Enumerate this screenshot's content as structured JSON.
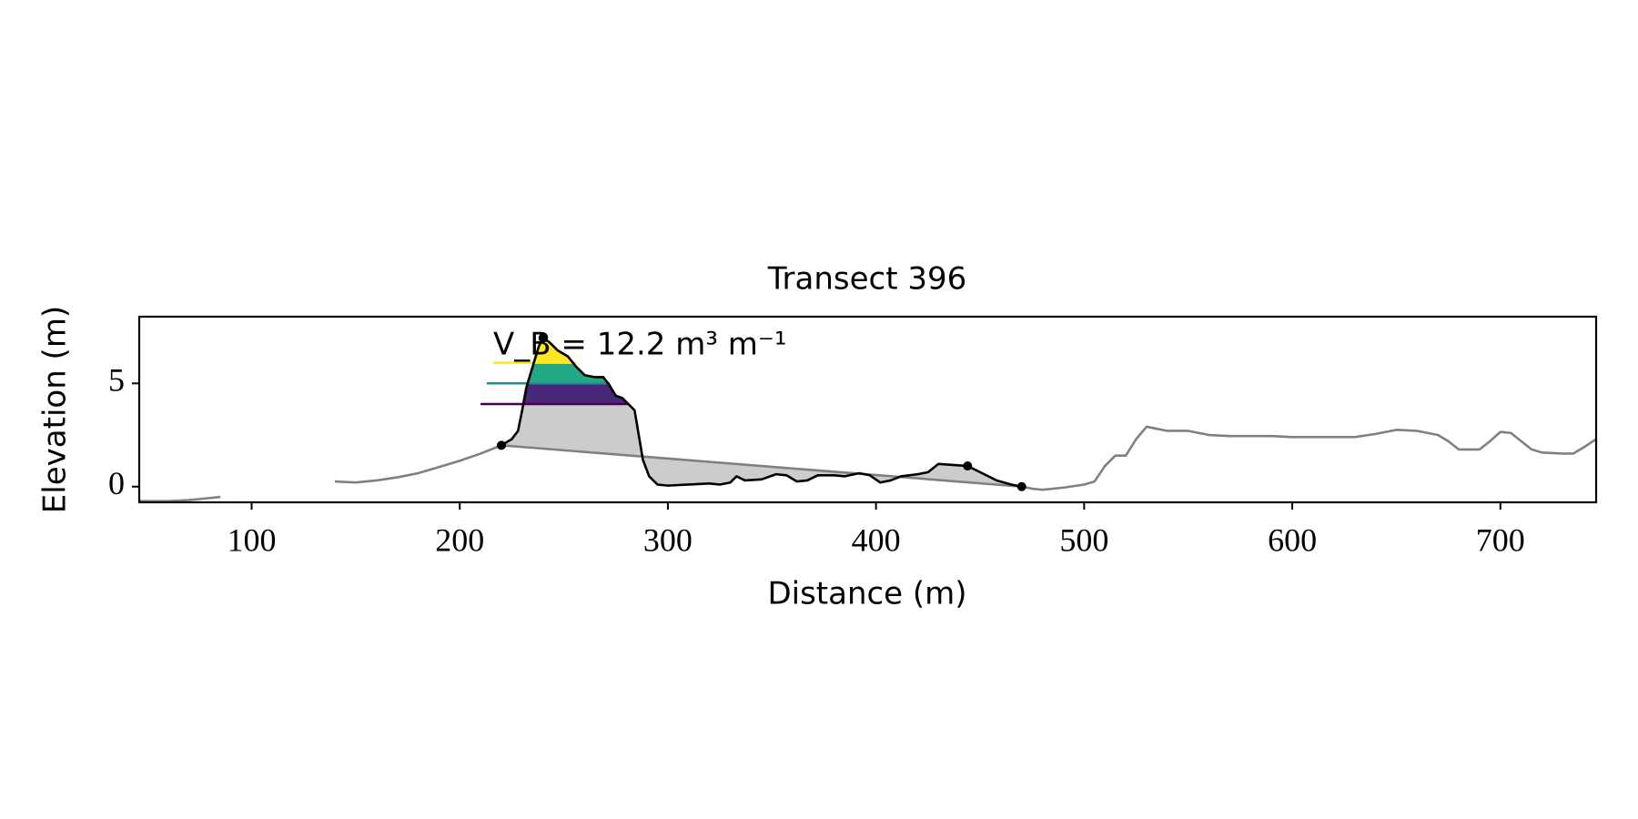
{
  "chart_data": {
    "type": "line",
    "title": "Transect 396",
    "xlabel": "Distance (m)",
    "ylabel": "Elevation (m)",
    "annotation": "V_B = 12.2 m³ m⁻¹",
    "xlim": [
      46,
      746
    ],
    "ylim": [
      -0.76,
      8.23
    ],
    "xticks": [
      100,
      200,
      300,
      400,
      500,
      600,
      700
    ],
    "yticks": [
      0,
      5
    ],
    "fill_color": "#cccccc",
    "series": [
      {
        "color": "#808080",
        "x": [
          46,
          60,
          70,
          75,
          80,
          85,
          110,
          140,
          150,
          160,
          170,
          180,
          190,
          200,
          210,
          220,
          470,
          475,
          480,
          490,
          500,
          505,
          510,
          515,
          520,
          525,
          530,
          535,
          540,
          550,
          560,
          570,
          580,
          590,
          600,
          610,
          620,
          630,
          640,
          650,
          660,
          670,
          675,
          680,
          690,
          695,
          700,
          705,
          710,
          715,
          720,
          730,
          735,
          740,
          746
        ],
        "values": [
          -0.7,
          -0.7,
          -0.65,
          -0.6,
          -0.55,
          -0.5,
          null,
          0.25,
          0.2,
          0.3,
          0.45,
          0.65,
          0.95,
          1.25,
          1.6,
          2.0,
          0.0,
          -0.1,
          -0.15,
          -0.05,
          0.1,
          0.25,
          1.0,
          1.5,
          1.5,
          2.3,
          2.9,
          2.8,
          2.7,
          2.7,
          2.5,
          2.45,
          2.45,
          2.45,
          2.4,
          2.4,
          2.4,
          2.4,
          2.55,
          2.75,
          2.7,
          2.5,
          2.2,
          1.8,
          1.8,
          2.2,
          2.65,
          2.6,
          2.2,
          1.8,
          1.65,
          1.6,
          1.6,
          1.9,
          2.3
        ]
      },
      {
        "color": "#000000",
        "x": [
          220,
          225,
          228,
          230,
          232,
          235,
          238,
          240,
          243,
          247,
          252,
          256,
          260,
          265,
          269,
          272,
          275,
          278,
          281,
          284,
          286,
          288,
          291,
          295,
          300,
          310,
          320,
          325,
          330,
          333,
          337,
          345,
          352,
          357,
          362,
          367,
          372,
          380,
          385,
          392,
          397,
          402,
          407,
          412,
          420,
          425,
          430,
          437,
          444,
          450,
          458,
          465,
          470
        ],
        "values": [
          2.0,
          2.3,
          2.7,
          3.7,
          4.8,
          5.8,
          6.8,
          7.2,
          7.0,
          6.6,
          6.3,
          5.8,
          5.4,
          5.3,
          5.3,
          4.9,
          4.4,
          4.3,
          4.0,
          3.7,
          2.5,
          1.3,
          0.5,
          0.1,
          0.05,
          0.1,
          0.15,
          0.1,
          0.2,
          0.5,
          0.3,
          0.35,
          0.6,
          0.55,
          0.25,
          0.3,
          0.55,
          0.55,
          0.5,
          0.65,
          0.55,
          0.2,
          0.3,
          0.5,
          0.6,
          0.7,
          1.1,
          1.05,
          1.0,
          0.7,
          0.3,
          0.1,
          0.0
        ]
      }
    ],
    "levels": [
      {
        "value": 4,
        "x": [
          210,
          281
        ],
        "color": "#440154",
        "fill": "#482878"
      },
      {
        "value": 5,
        "x": [
          213,
          272
        ],
        "color": "#21918c",
        "fill": "#22a884"
      },
      {
        "value": 6,
        "x": [
          216,
          256
        ],
        "color": "#fde725",
        "fill": "#fde725"
      }
    ],
    "markers": {
      "color": "#000000",
      "x": [
        220,
        240,
        444,
        470
      ],
      "values": [
        2.0,
        7.2,
        1.0,
        0.0
      ]
    }
  }
}
